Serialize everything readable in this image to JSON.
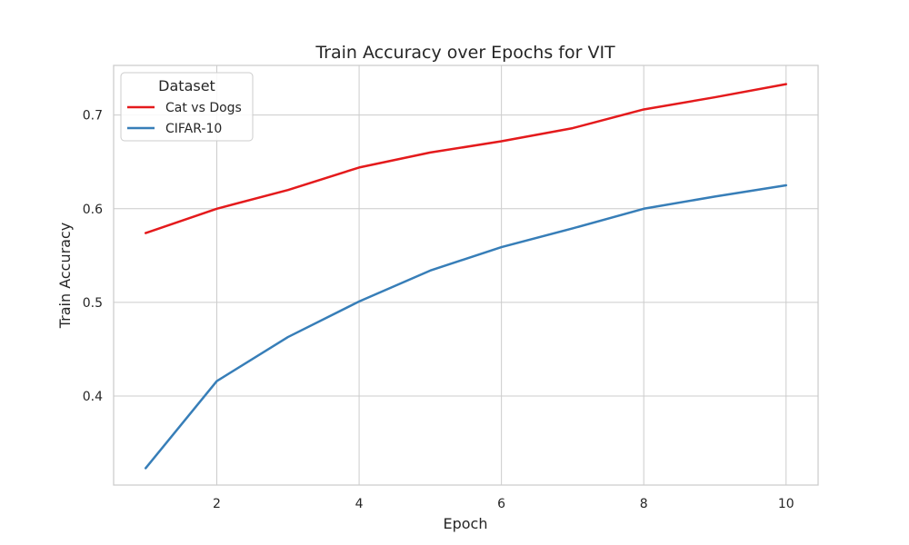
{
  "chart_data": {
    "type": "line",
    "title": "Train Accuracy over Epochs for VIT",
    "xlabel": "Epoch",
    "ylabel": "Train Accuracy",
    "xlim": [
      0.55,
      10.45
    ],
    "ylim": [
      0.305,
      0.753
    ],
    "xticks": [
      2,
      4,
      6,
      8,
      10
    ],
    "xtick_labels": [
      "2",
      "4",
      "6",
      "8",
      "10"
    ],
    "yticks": [
      0.4,
      0.5,
      0.6,
      0.7
    ],
    "ytick_labels": [
      "0.4",
      "0.5",
      "0.6",
      "0.7"
    ],
    "grid": true,
    "legend": {
      "title": "Dataset",
      "placement": "top-left"
    },
    "x": [
      1,
      2,
      3,
      4,
      5,
      6,
      7,
      8,
      9,
      10
    ],
    "series": [
      {
        "name": "Cat vs Dogs",
        "color": "#e41a1c",
        "values": [
          0.574,
          0.6,
          0.62,
          0.644,
          0.66,
          0.672,
          0.686,
          0.706,
          0.719,
          0.733
        ]
      },
      {
        "name": "CIFAR-10",
        "color": "#377eb8",
        "values": [
          0.323,
          0.416,
          0.463,
          0.501,
          0.534,
          0.559,
          0.579,
          0.6,
          0.613,
          0.625
        ]
      }
    ]
  }
}
